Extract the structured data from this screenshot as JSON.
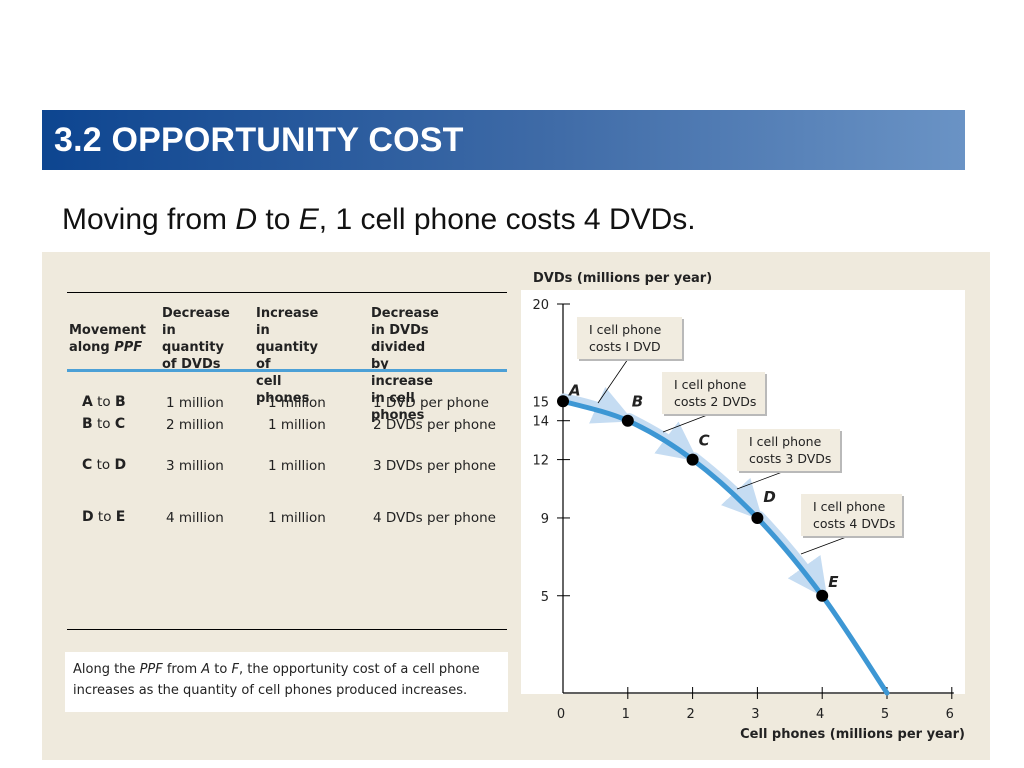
{
  "header": {
    "title": "3.2 OPPORTUNITY COST"
  },
  "subtitle": {
    "part1": "Moving from ",
    "d": "D",
    "part2": " to ",
    "e": "E",
    "part3": ", 1 cell phone costs 4 DVDs."
  },
  "table": {
    "headers": [
      "Movement\nalong PPF",
      "Decrease\nin quantity\nof DVDs",
      "Increase in\nquantity of\ncell phones",
      "Decrease in DVDs\ndivided by increase\nin cell phones"
    ],
    "rows": [
      {
        "from": "A",
        "to_word": "to",
        "to": "B",
        "dec": "1 million",
        "inc": "1 million",
        "ratio": "1 DVD per phone"
      },
      {
        "from": "B",
        "to_word": "to",
        "to": "C",
        "dec": "2 million",
        "inc": "1 million",
        "ratio": "2 DVDs per phone"
      },
      {
        "from": "C",
        "to_word": "to",
        "to": "D",
        "dec": "3 million",
        "inc": "1 million",
        "ratio": "3 DVDs per phone"
      },
      {
        "from": "D",
        "to_word": "to",
        "to": "E",
        "dec": "4 million",
        "inc": "1 million",
        "ratio": "4 DVDs per phone"
      }
    ],
    "note": "Along the PPF from A to F, the opportunity cost of a cell phone increases as the quantity of cell phones produced increases."
  },
  "chart_data": {
    "type": "line",
    "ylabel": "DVDs (millions per year)",
    "xlabel": "Cell phones (millions per year)",
    "xlim": [
      0,
      6
    ],
    "ylim": [
      0,
      20
    ],
    "x_ticks": [
      0,
      1,
      2,
      3,
      4,
      5,
      6
    ],
    "y_ticks": [
      5,
      9,
      12,
      14,
      15,
      20
    ],
    "series": [
      {
        "x": [
          0,
          1,
          2,
          3,
          4,
          5
        ],
        "y": [
          15,
          14,
          12,
          9,
          5,
          0
        ]
      }
    ],
    "points": [
      {
        "label": "A",
        "x": 0,
        "y": 15
      },
      {
        "label": "B",
        "x": 1,
        "y": 14
      },
      {
        "label": "C",
        "x": 2,
        "y": 12
      },
      {
        "label": "D",
        "x": 3,
        "y": 9
      },
      {
        "label": "E",
        "x": 4,
        "y": 5
      }
    ],
    "callouts": [
      "I cell phone\ncosts I DVD",
      "I cell phone\ncosts 2 DVDs",
      "I cell phone\ncosts 3 DVDs",
      "I cell phone\ncosts 4 DVDs"
    ],
    "colors": {
      "curve": "#3d97d4",
      "arrow": "#c5dcf2",
      "point": "#000000"
    }
  }
}
